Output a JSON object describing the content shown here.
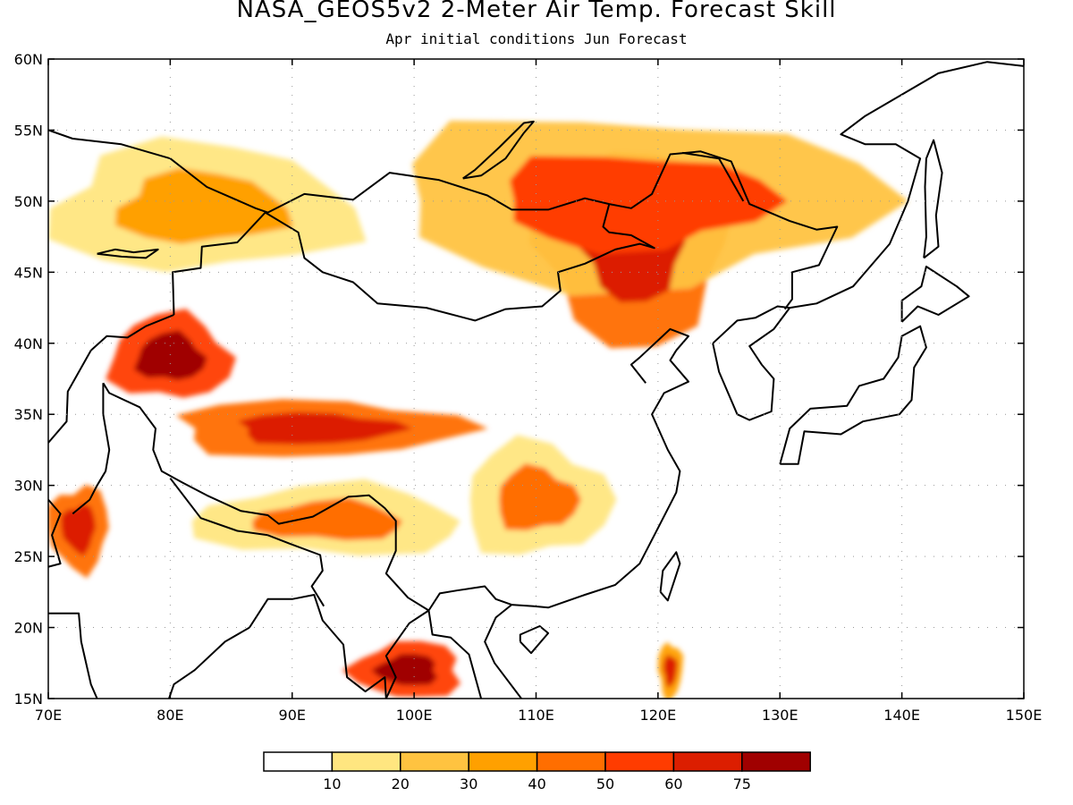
{
  "figure": {
    "title": "NASA_GEOS5v2 2-Meter Air Temp. Forecast Skill",
    "subtitle": "Apr initial conditions  Jun Forecast"
  },
  "map": {
    "lon_range": [
      70,
      150
    ],
    "lat_range": [
      15,
      60
    ],
    "x_ticks": [
      "70E",
      "80E",
      "90E",
      "100E",
      "110E",
      "120E",
      "130E",
      "140E",
      "150E"
    ],
    "y_ticks": [
      "15N",
      "20N",
      "25N",
      "30N",
      "35N",
      "40N",
      "45N",
      "50N",
      "55N",
      "60N"
    ],
    "grid": true,
    "coastline_color": "#000000"
  },
  "colorbar": {
    "boundaries": [
      "10",
      "20",
      "30",
      "40",
      "50",
      "60",
      "75"
    ],
    "colors": [
      "#ffffff",
      "#ffe680",
      "#ffc340",
      "#ffa000",
      "#ff6e00",
      "#ff3c00",
      "#dc1e00",
      "#a00000"
    ]
  },
  "chart_data": {
    "type": "heatmap",
    "title": "NASA_GEOS5v2 2-Meter Air Temp. Forecast Skill",
    "subtitle": "Apr initial conditions  Jun Forecast",
    "x_range": [
      70,
      150
    ],
    "y_range": [
      15,
      60
    ],
    "levels": [
      10,
      20,
      30,
      40,
      50,
      60,
      75
    ],
    "regions": [
      {
        "name": "",
        "lon": [
          75,
          85
        ],
        "lat": [
          36,
          42
        ],
        "value_range": [
          50,
          75
        ]
      },
      {
        "name": "",
        "lon": [
          80,
          104
        ],
        "lat": [
          32,
          36
        ],
        "value_range": [
          40,
          60
        ]
      },
      {
        "name": "",
        "lon": [
          110,
          126
        ],
        "lat": [
          40,
          54
        ],
        "value_range": [
          40,
          60
        ]
      },
      {
        "name": "",
        "lon": [
          95,
          104
        ],
        "lat": [
          15,
          19
        ],
        "value_range": [
          50,
          75
        ]
      },
      {
        "name": "",
        "lon": [
          70,
          95
        ],
        "lat": [
          45,
          54
        ],
        "value_range": [
          10,
          30
        ]
      },
      {
        "name": "",
        "lon": [
          98,
          138
        ],
        "lat": [
          44,
          56
        ],
        "value_range": [
          20,
          50
        ]
      },
      {
        "name": "",
        "lon": [
          70,
          75
        ],
        "lat": [
          24,
          30
        ],
        "value_range": [
          40,
          60
        ]
      },
      {
        "name": "",
        "lon": [
          82,
          104
        ],
        "lat": [
          25,
          30
        ],
        "value_range": [
          10,
          40
        ]
      },
      {
        "name": "",
        "lon": [
          104,
          116
        ],
        "lat": [
          25,
          33
        ],
        "value_range": [
          10,
          40
        ]
      },
      {
        "name": "",
        "lon": [
          120,
          122
        ],
        "lat": [
          15,
          19
        ],
        "value_range": [
          30,
          60
        ]
      }
    ]
  }
}
